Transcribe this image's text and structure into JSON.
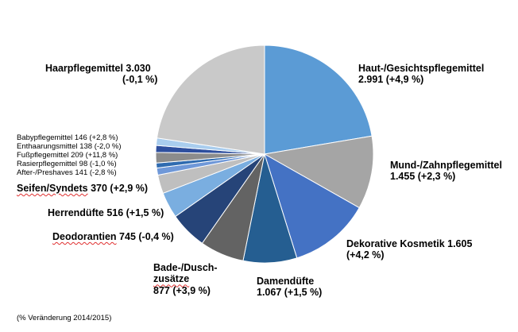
{
  "chart_data": {
    "type": "pie",
    "title": "",
    "unit_note": "(% Veränderung 2014/2015)",
    "slices": [
      {
        "name": "Haut-/Gesichtspflegemittel",
        "value": 2991,
        "change": "(+4,9 %)",
        "text": "2.991 (+4,9 %)",
        "color": "#5b9bd5"
      },
      {
        "name": "Mund-/Zahnpflegemittel",
        "value": 1455,
        "change": "(+2,3 %)",
        "text": "1.455 (+2,3 %)",
        "color": "#a5a5a5"
      },
      {
        "name": "Dekorative Kosmetik",
        "value": 1605,
        "change": "(+4,2 %)",
        "text": "1.605",
        "color": "#4472c4"
      },
      {
        "name": "Damendüfte",
        "value": 1067,
        "change": "(+1,5 %)",
        "text": "1.067 (+1,5 %)",
        "color": "#255e91"
      },
      {
        "name": "Bade-/Dusch-zusätze",
        "value": 877,
        "change": "(+3,9 %)",
        "text": "877 (+3,9 %)",
        "color": "#636363"
      },
      {
        "name": "Deodorantien",
        "value": 745,
        "change": "(-0,4 %)",
        "text": "745 (-0,4 %)",
        "color": "#264478"
      },
      {
        "name": "Herrendüfte",
        "value": 516,
        "change": "(+1,5 %)",
        "text": "516 (+1,5 %)",
        "color": "#7aaee0"
      },
      {
        "name": "Seifen/Syndets",
        "value": 370,
        "change": "(+2,9 %)",
        "text": "370 (+2,9 %)",
        "color": "#bfbfbf"
      },
      {
        "name": "After-/Preshaves",
        "value": 141,
        "change": "(-2,8 %)",
        "text": "After-/Preshaves 141 (-2,8 %)",
        "color": "#6f98d8"
      },
      {
        "name": "Rasierpflegemittel",
        "value": 98,
        "change": "(-1,0 %)",
        "text": "Rasierpflegemittel 98 (-1,0 %)",
        "color": "#2f6bb0"
      },
      {
        "name": "Fußpflegemittel",
        "value": 209,
        "change": "(+11,8 %)",
        "text": "Fußpflegemittel 209 (+11,8 %)",
        "color": "#8c8c8c"
      },
      {
        "name": "Enthaarungsmittel",
        "value": 138,
        "change": "(-2,0 %)",
        "text": "Enthaarungsmittel 138 (-2,0 %)",
        "color": "#2e4f9e"
      },
      {
        "name": "Babypflegemittel",
        "value": 146,
        "change": "(+2,8 %)",
        "text": "Babypflegemittel 146 (+2,8 %)",
        "color": "#a9cdee"
      },
      {
        "name": "Haarpflegemittel",
        "value": 3030,
        "change": "(-0,1 %)",
        "text": "Haarpflegemittel 3.030",
        "color": "#c9c9c9"
      }
    ],
    "labels": {
      "haut_l1": "Haut-/Gesichtspflegemittel",
      "haut_l2": "2.991 (+4,9 %)",
      "mund_l1": "Mund-/Zahnpflegemittel",
      "mund_l2": "1.455 (+2,3 %)",
      "deko_l1": "Dekorative Kosmetik 1.605",
      "deko_l2": "(+4,2 %)",
      "dame_l1": "Damendüfte",
      "dame_l2": "1.067 (+1,5 %)",
      "bade_l1": "Bade-/Dusch-",
      "bade_l2": "zusätze",
      "bade_l3": "877 (+3,9 %)",
      "deo_name": "Deodorantien",
      "deo_val": " 745 (-0,4 %)",
      "herr": "Herrendüfte  516 (+1,5 %)",
      "seif_name": "Seifen/Syndets",
      "seif_val": "  370 (+2,9 %)",
      "after": "After-/Preshaves 141 (-2,8 %)",
      "rasier": "Rasierpflegemittel  98 (-1,0 %)",
      "fuss": "Fußpflegemittel 209 (+11,8 %)",
      "enth": "Enthaarungsmittel 138 (-2,0 %)",
      "baby": "Babypflegemittel 146 (+2,8 %)",
      "haar_l1": "Haarpflegemittel  3.030",
      "haar_l2": "(-0,1 %)"
    }
  }
}
